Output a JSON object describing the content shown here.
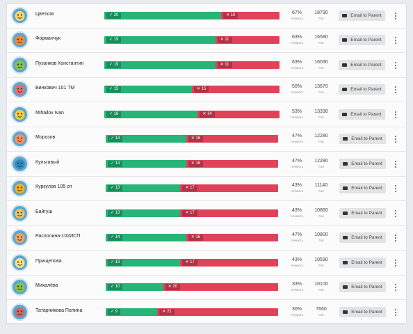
{
  "email_label": "Email to Parent",
  "colors": {
    "correct": "#26b477",
    "wrong": "#e0425a",
    "avatar": "#5aa7d0"
  },
  "students": [
    {
      "name": "Цветков",
      "correct": 20,
      "wrong": 10,
      "correct_label": "✓ 20",
      "wrong_label": "✕ 10",
      "accuracy": "67%",
      "accuracy_unit": "точность",
      "points": "18790",
      "points_unit": "Гол",
      "avatar_icon": "dog-icon"
    },
    {
      "name": "Форманчук",
      "correct": 19,
      "wrong": 11,
      "correct_label": "✓ 19",
      "wrong_label": "✕ 11",
      "accuracy": "63%",
      "accuracy_unit": "точность",
      "points": "16580",
      "points_unit": "Гол",
      "avatar_icon": "fox-icon"
    },
    {
      "name": "Пузанков Константин",
      "correct": 19,
      "wrong": 11,
      "correct_label": "✓ 19",
      "wrong_label": "✕ 11",
      "accuracy": "63%",
      "accuracy_unit": "точность",
      "points": "16030",
      "points_unit": "Гол",
      "avatar_icon": "turtle-icon"
    },
    {
      "name": "Винкович 101 ТМ",
      "correct": 15,
      "wrong": 15,
      "correct_label": "✓ 15",
      "wrong_label": "✕ 15",
      "accuracy": "50%",
      "accuracy_unit": "точность",
      "points": "13670",
      "points_unit": "Гол",
      "avatar_icon": "robot-icon"
    },
    {
      "name": "Mihailov Ivan",
      "correct": 16,
      "wrong": 14,
      "correct_label": "✓ 16",
      "wrong_label": "✕ 14",
      "accuracy": "53%",
      "accuracy_unit": "точность",
      "points": "13330",
      "points_unit": "Гол",
      "avatar_icon": "bird-icon"
    },
    {
      "name": "Морозов",
      "correct": 14,
      "wrong": 16,
      "correct_label": "✓ 14",
      "wrong_label": "✕ 16",
      "accuracy": "47%",
      "accuracy_unit": "точность",
      "points": "12280",
      "points_unit": "Гол",
      "avatar_icon": "bowl-icon"
    },
    {
      "name": "Кульгавый",
      "correct": 14,
      "wrong": 16,
      "correct_label": "✓ 14",
      "wrong_label": "✕ 16",
      "accuracy": "47%",
      "accuracy_unit": "точность",
      "points": "12280",
      "points_unit": "Гол",
      "avatar_icon": "hat-icon"
    },
    {
      "name": "Куркулов 105 сп",
      "correct": 13,
      "wrong": 17,
      "correct_label": "✓ 13",
      "wrong_label": "✕ 17",
      "accuracy": "43%",
      "accuracy_unit": "точность",
      "points": "11140",
      "points_unit": "Гол",
      "avatar_icon": "snail-icon"
    },
    {
      "name": "Байгуш",
      "correct": 13,
      "wrong": 17,
      "correct_label": "✓ 13",
      "wrong_label": "✕ 17",
      "accuracy": "43%",
      "accuracy_unit": "точность",
      "points": "10860",
      "points_unit": "Гол",
      "avatar_icon": "car-icon"
    },
    {
      "name": "Располина-102ИСП",
      "correct": 14,
      "wrong": 16,
      "correct_label": "✓ 14",
      "wrong_label": "✕ 16",
      "accuracy": "47%",
      "accuracy_unit": "точность",
      "points": "10800",
      "points_unit": "Гол",
      "avatar_icon": "drop-icon"
    },
    {
      "name": "Прищепова",
      "correct": 13,
      "wrong": 17,
      "correct_label": "✓ 13",
      "wrong_label": "✕ 17",
      "accuracy": "43%",
      "accuracy_unit": "точность",
      "points": "10530",
      "points_unit": "Гол",
      "avatar_icon": "owl-icon"
    },
    {
      "name": "Михалёва",
      "correct": 10,
      "wrong": 20,
      "correct_label": "✓ 10",
      "wrong_label": "✕ 20",
      "accuracy": "33%",
      "accuracy_unit": "точность",
      "points": "10100",
      "points_unit": "Гол",
      "avatar_icon": "plant-icon"
    },
    {
      "name": "Татарникова Полина",
      "correct": 9,
      "wrong": 21,
      "correct_label": "✓ 9",
      "wrong_label": "✕ 21",
      "accuracy": "30%",
      "accuracy_unit": "точность",
      "points": "7660",
      "points_unit": "Гол",
      "avatar_icon": "crab-icon"
    }
  ]
}
